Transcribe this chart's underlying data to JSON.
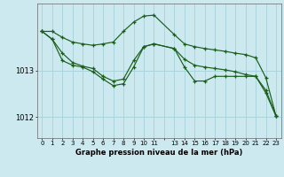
{
  "title": "Graphe pression niveau de la mer (hPa)",
  "bg_color": "#cce9f0",
  "grid_color": "#aad4dc",
  "line_color": "#1a5e1a",
  "xlim": [
    -0.5,
    23.5
  ],
  "ylim": [
    1011.55,
    1014.45
  ],
  "yticks": [
    1012,
    1013
  ],
  "xtick_labels": [
    "0",
    "1",
    "2",
    "3",
    "4",
    "5",
    "6",
    "7",
    "8",
    "9",
    "10",
    "11",
    "",
    "13",
    "14",
    "15",
    "16",
    "17",
    "18",
    "19",
    "20",
    "21",
    "22",
    "23"
  ],
  "line1_x": [
    0,
    1,
    2,
    3,
    4,
    5,
    6,
    7,
    8,
    9,
    10,
    11,
    13,
    14,
    15,
    16,
    17,
    18,
    19,
    20,
    21,
    22,
    23
  ],
  "line1_y": [
    1013.85,
    1013.85,
    1013.72,
    1013.62,
    1013.58,
    1013.55,
    1013.58,
    1013.62,
    1013.85,
    1014.05,
    1014.18,
    1014.2,
    1013.78,
    1013.58,
    1013.52,
    1013.48,
    1013.45,
    1013.42,
    1013.38,
    1013.35,
    1013.28,
    1012.85,
    1012.02
  ],
  "line2_x": [
    0,
    1,
    2,
    3,
    4,
    5,
    6,
    7,
    8,
    9,
    10,
    11,
    13,
    14,
    15,
    16,
    17,
    18,
    19,
    20,
    21,
    22,
    23
  ],
  "line2_y": [
    1013.85,
    1013.68,
    1013.38,
    1013.18,
    1013.1,
    1013.05,
    1012.88,
    1012.78,
    1012.82,
    1013.22,
    1013.52,
    1013.58,
    1013.48,
    1013.25,
    1013.12,
    1013.08,
    1013.05,
    1013.02,
    1012.98,
    1012.92,
    1012.88,
    1012.58,
    1012.02
  ],
  "line3_x": [
    0,
    1,
    2,
    3,
    4,
    5,
    6,
    7,
    8,
    9,
    10,
    11,
    13,
    14,
    15,
    16,
    17,
    18,
    19,
    20,
    21,
    22,
    23
  ],
  "line3_y": [
    1013.85,
    1013.68,
    1013.22,
    1013.12,
    1013.08,
    1012.98,
    1012.82,
    1012.68,
    1012.72,
    1013.08,
    1013.52,
    1013.58,
    1013.48,
    1013.08,
    1012.78,
    1012.78,
    1012.88,
    1012.88,
    1012.88,
    1012.88,
    1012.88,
    1012.52,
    1012.02
  ]
}
